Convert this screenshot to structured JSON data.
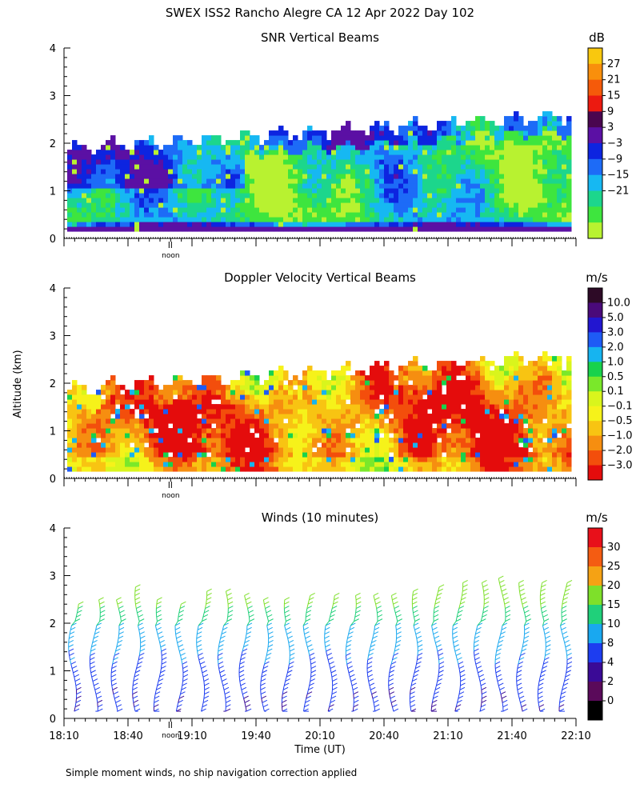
{
  "page_title": "SWEX ISS2 Rancho Alegre CA  12 Apr 2022 Day 102",
  "y_axis_label": "Altitude (km)",
  "x_axis_label": "Time (UT)",
  "footnote": "Simple moment winds, no ship navigation correction applied",
  "noon_label": "noon",
  "chart_data": [
    {
      "type": "heatmap",
      "title": "SNR Vertical Beams",
      "ylim": [
        0,
        4
      ],
      "yticks": [
        "0",
        "1",
        "2",
        "3",
        "4"
      ],
      "colorbar": {
        "unit": "dB",
        "labels": [
          "27",
          "21",
          "15",
          "9",
          "3",
          "−3",
          "−9",
          "−15",
          "−21"
        ],
        "colors": [
          "#f9c80e",
          "#f98f0c",
          "#f55a0a",
          "#ec1a10",
          "#4a064f",
          "#5b10a4",
          "#0d24e0",
          "#1d6bf7",
          "#16b8f2",
          "#1cd68c",
          "#3ee53e",
          "#b8f230"
        ]
      }
    },
    {
      "type": "heatmap",
      "title": "Doppler Velocity Vertical Beams",
      "ylim": [
        0,
        4
      ],
      "yticks": [
        "0",
        "1",
        "2",
        "3",
        "4"
      ],
      "colorbar": {
        "unit": "m/s",
        "labels": [
          "10.0",
          "5.0",
          "3.0",
          "2.0",
          "1.0",
          "0.5",
          "0.1",
          "−0.1",
          "−0.5",
          "−1.0",
          "−2.0",
          "−3.0"
        ],
        "colors": [
          "#2d0a26",
          "#4a0a7a",
          "#2216d0",
          "#1e5bf5",
          "#16b4f0",
          "#18d24c",
          "#7ae82a",
          "#d9f51c",
          "#f6f21a",
          "#f8c412",
          "#f68e10",
          "#f34e0c",
          "#e40c0c"
        ]
      }
    },
    {
      "type": "scatter",
      "title": "Winds (10 minutes)",
      "ylim": [
        0,
        4
      ],
      "yticks": [
        "0",
        "1",
        "2",
        "3",
        "4"
      ],
      "x_ticks": [
        "18:10",
        "18:40",
        "19:10",
        "19:40",
        "20:10",
        "20:40",
        "21:10",
        "21:40",
        "22:10"
      ],
      "xlim": [
        "18:10",
        "22:10"
      ],
      "profile_times": [
        "18:14",
        "18:24",
        "18:34",
        "18:44",
        "18:54",
        "19:04",
        "19:14",
        "19:24",
        "19:34",
        "19:44",
        "19:54",
        "20:04",
        "20:14",
        "20:24",
        "20:34",
        "20:44",
        "20:54",
        "21:04",
        "21:14",
        "21:24",
        "21:34",
        "21:44",
        "21:54",
        "22:04"
      ],
      "profile_tops_km": [
        2.4,
        2.5,
        2.5,
        2.8,
        2.5,
        2.4,
        2.7,
        2.75,
        2.6,
        2.5,
        2.5,
        2.6,
        2.6,
        2.6,
        2.6,
        2.6,
        2.7,
        2.8,
        2.9,
        2.9,
        3.0,
        2.9,
        2.9,
        2.9
      ],
      "colorbar": {
        "unit": "m/s",
        "labels": [
          "30",
          "25",
          "20",
          "15",
          "10",
          "8",
          "4",
          "2",
          "0"
        ],
        "colors": [
          "#e8101a",
          "#f45c12",
          "#f5a214",
          "#7ee02a",
          "#20d07a",
          "#19a8f0",
          "#1d3df0",
          "#3a0a96",
          "#5a0a5a",
          "#000000"
        ]
      }
    }
  ]
}
